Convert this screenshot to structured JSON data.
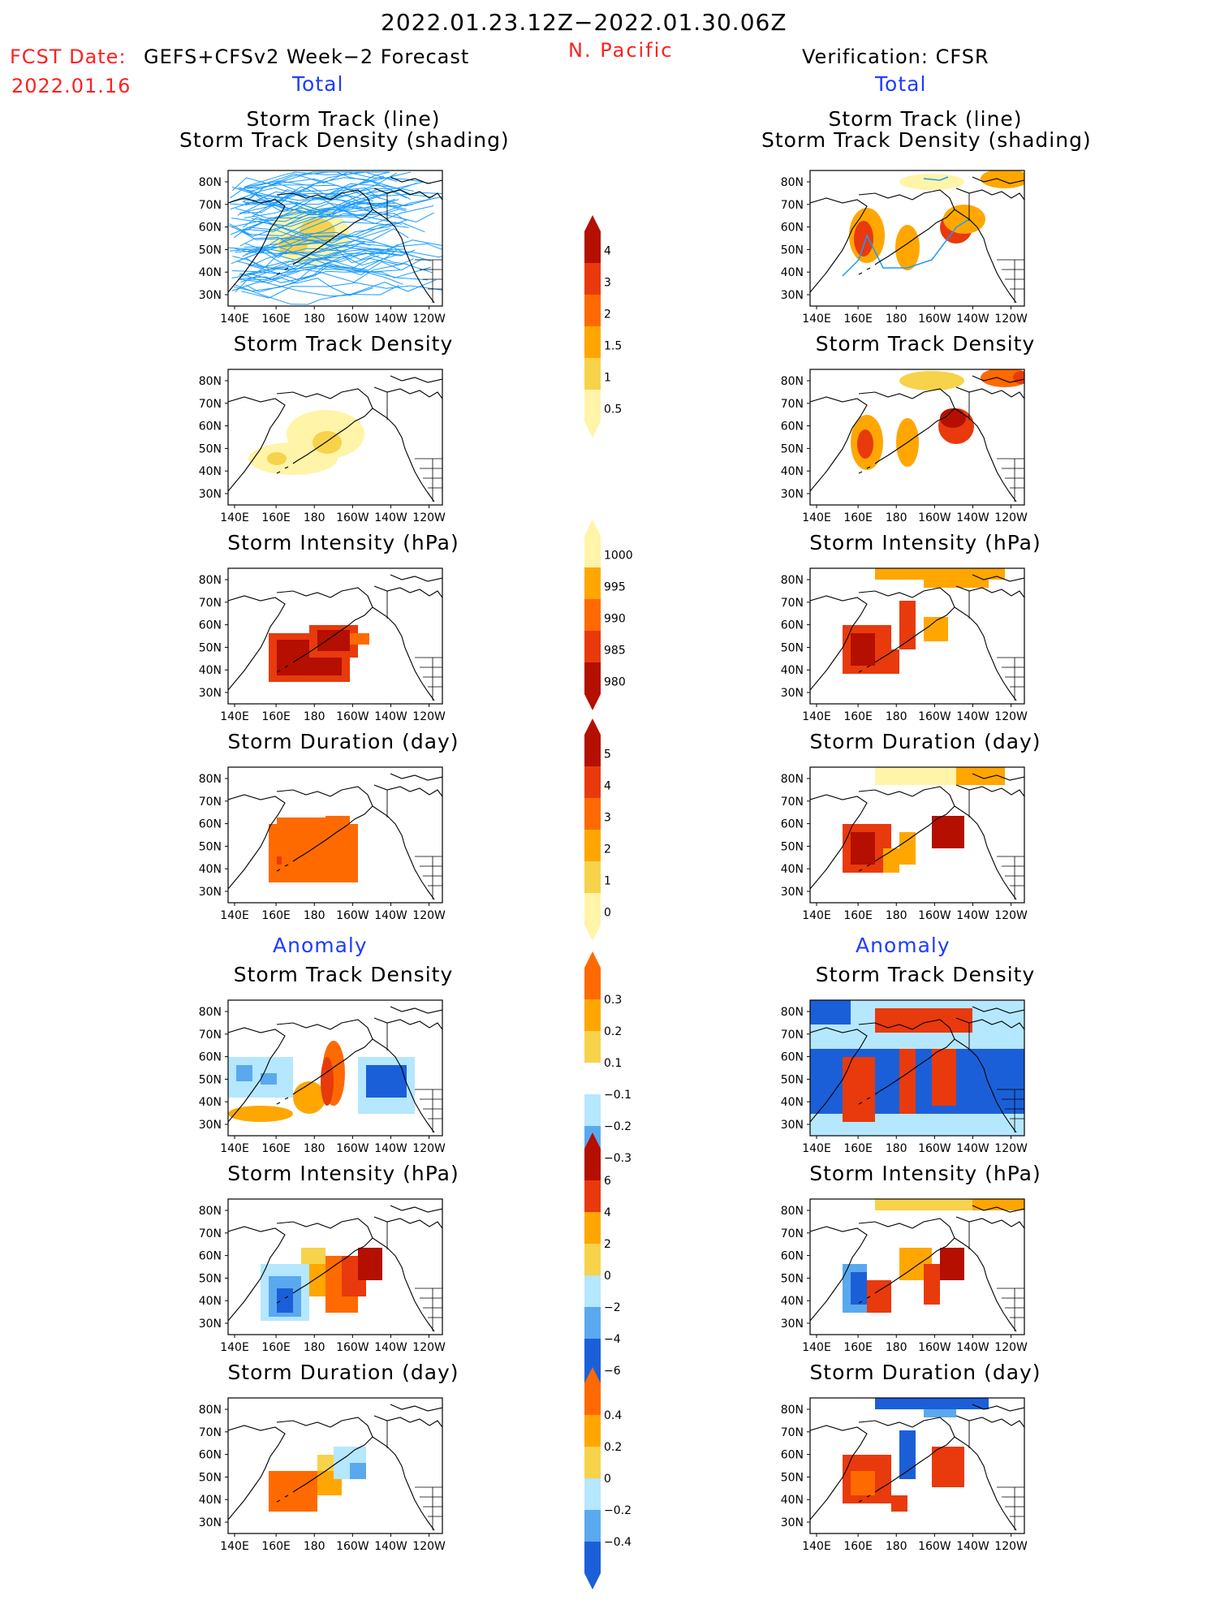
{
  "header": {
    "date_range": "2022.01.23.12Z−2022.01.30.06Z",
    "fcst_label": "FCST Date:",
    "fcst_model": "GEFS+CFSv2 Week−2 Forecast",
    "fcst_date": "2022.01.16",
    "region": "N. Pacific",
    "verification": "Verification: CFSR"
  },
  "colors": {
    "yellow_light": "#fff4a8",
    "yellow": "#f7d24b",
    "orange": "#ffa700",
    "orange_red": "#ff6a00",
    "red": "#e83a0c",
    "dark_red": "#b40f00",
    "blue_light": "#b5e7ff",
    "blue_mid": "#5aa9ee",
    "blue_dark": "#1b5fd8",
    "track_line": "#1a9bff"
  },
  "axes": {
    "x_ticks": [
      "140E",
      "160E",
      "180",
      "160W",
      "140W",
      "120W"
    ],
    "y_ticks": [
      "80N",
      "70N",
      "60N",
      "50N",
      "40N",
      "30N"
    ]
  },
  "sections": {
    "total": "Total",
    "anomaly": "Anomaly"
  },
  "panels": {
    "left": [
      {
        "title1": "Storm Track (line)",
        "title2": "Storm Track Density (shading)"
      },
      {
        "title1": "Storm Track Density"
      },
      {
        "title1": "Storm Intensity (hPa)"
      },
      {
        "title1": "Storm Duration (day)"
      },
      {
        "title1": "Storm Track Density"
      },
      {
        "title1": "Storm Intensity (hPa)"
      },
      {
        "title1": "Storm Duration (day)"
      }
    ],
    "right": [
      {
        "title1": "Storm Track (line)",
        "title2": "Storm Track Density (shading)"
      },
      {
        "title1": "Storm Track Density"
      },
      {
        "title1": "Storm Intensity (hPa)"
      },
      {
        "title1": "Storm Duration (day)"
      },
      {
        "title1": "Storm Track Density"
      },
      {
        "title1": "Storm Intensity (hPa)"
      },
      {
        "title1": "Storm Duration (day)"
      }
    ]
  },
  "colorbars": [
    {
      "name": "density",
      "labels": [
        "4",
        "3",
        "2",
        "1.5",
        "1",
        "0.5"
      ]
    },
    {
      "name": "intensity",
      "labels": [
        "1000",
        "995",
        "990",
        "985",
        "980"
      ]
    },
    {
      "name": "duration",
      "labels": [
        "5",
        "4",
        "3",
        "2",
        "1",
        "0"
      ]
    },
    {
      "name": "density-anomaly",
      "labels": [
        "0.3",
        "0.2",
        "0.1",
        "−0.1",
        "−0.2",
        "−0.3"
      ]
    },
    {
      "name": "intensity-anomaly",
      "labels": [
        "6",
        "4",
        "2",
        "0",
        "−2",
        "−4",
        "−6"
      ]
    },
    {
      "name": "duration-anomaly",
      "labels": [
        "0.4",
        "0.2",
        "0",
        "−0.2",
        "−0.4"
      ]
    }
  ]
}
